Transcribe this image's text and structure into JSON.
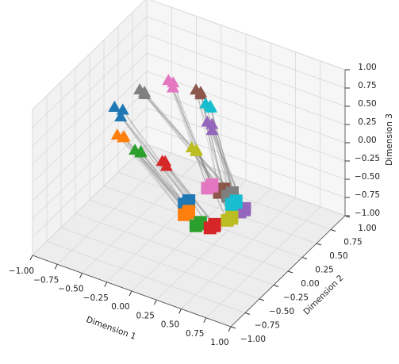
{
  "chart_data": {
    "type": "scatter3d",
    "xlabel": "Dimension 1",
    "ylabel": "Dimension 2",
    "zlabel": "Dimension 3",
    "xlim": [
      -1,
      1
    ],
    "ylim": [
      -1,
      1
    ],
    "zlim": [
      -1,
      1
    ],
    "xticks": [
      {
        "value": -1,
        "label": "−1.00"
      },
      {
        "value": -0.75,
        "label": "−0.75"
      },
      {
        "value": -0.5,
        "label": "−0.50"
      },
      {
        "value": -0.25,
        "label": "−0.25"
      },
      {
        "value": 0,
        "label": "0.00"
      },
      {
        "value": 0.25,
        "label": "0.25"
      },
      {
        "value": 0.5,
        "label": "0.50"
      },
      {
        "value": 0.75,
        "label": "0.75"
      },
      {
        "value": 1,
        "label": "1.00"
      }
    ],
    "yticks": [
      {
        "value": -1,
        "label": "−1.00"
      },
      {
        "value": -0.75,
        "label": "−0.75"
      },
      {
        "value": -0.5,
        "label": "−0.50"
      },
      {
        "value": -0.25,
        "label": "−0.25"
      },
      {
        "value": 0,
        "label": "0.00"
      },
      {
        "value": 0.25,
        "label": "0.25"
      },
      {
        "value": 0.5,
        "label": "0.50"
      },
      {
        "value": 0.75,
        "label": "0.75"
      },
      {
        "value": 1,
        "label": "1.00"
      }
    ],
    "zticks": [
      {
        "value": -1,
        "label": "−1.00"
      },
      {
        "value": -0.75,
        "label": "−0.75"
      },
      {
        "value": -0.5,
        "label": "−0.50"
      },
      {
        "value": -0.25,
        "label": "−0.25"
      },
      {
        "value": 0,
        "label": "0.00"
      },
      {
        "value": 0.25,
        "label": "0.25"
      },
      {
        "value": 0.5,
        "label": "0.50"
      },
      {
        "value": 0.75,
        "label": "0.75"
      },
      {
        "value": 1,
        "label": "1.00"
      }
    ],
    "grid": true,
    "series": [
      {
        "color": "#1f77b4",
        "marker": "s",
        "x": [
          -0.15,
          -0.12,
          -0.1
        ],
        "y": [
          0.18,
          0.21,
          0.17
        ],
        "z": [
          -0.78,
          -0.74,
          -0.72
        ]
      },
      {
        "color": "#ff7f0e",
        "marker": "s",
        "x": [
          -0.07,
          -0.04,
          -0.02
        ],
        "y": [
          0.04,
          0.07,
          0.03
        ],
        "z": [
          -0.78,
          -0.74,
          -0.72
        ]
      },
      {
        "color": "#2ca02c",
        "marker": "s",
        "x": [
          0.1,
          0.13,
          0.15
        ],
        "y": [
          -0.05,
          -0.02,
          -0.06
        ],
        "z": [
          -0.78,
          -0.74,
          -0.72
        ]
      },
      {
        "color": "#d62728",
        "marker": "s",
        "x": [
          0.22,
          0.25,
          0.27
        ],
        "y": [
          -0.01,
          0.02,
          -0.02
        ],
        "z": [
          -0.78,
          -0.74,
          -0.72
        ]
      },
      {
        "color": "#9467bd",
        "marker": "s",
        "x": [
          0.32,
          0.35,
          0.37
        ],
        "y": [
          0.34,
          0.37,
          0.33
        ],
        "z": [
          -0.78,
          -0.74,
          -0.72
        ]
      },
      {
        "color": "#8c564b",
        "marker": "s",
        "x": [
          0.02,
          0.05,
          0.07
        ],
        "y": [
          0.5,
          0.53,
          0.49
        ],
        "z": [
          -0.78,
          -0.74,
          -0.72
        ]
      },
      {
        "color": "#e377c2",
        "marker": "s",
        "x": [
          -0.1,
          -0.07,
          -0.05
        ],
        "y": [
          0.5,
          0.53,
          0.49
        ],
        "z": [
          -0.78,
          -0.74,
          -0.72
        ]
      },
      {
        "color": "#7f7f7f",
        "marker": "s",
        "x": [
          0.11,
          0.14,
          0.16
        ],
        "y": [
          0.49,
          0.52,
          0.48
        ],
        "z": [
          -0.78,
          -0.74,
          -0.72
        ]
      },
      {
        "color": "#bcbd22",
        "marker": "s",
        "x": [
          0.29,
          0.32,
          0.34
        ],
        "y": [
          0.17,
          0.2,
          0.16
        ],
        "z": [
          -0.78,
          -0.74,
          -0.72
        ]
      },
      {
        "color": "#17becf",
        "marker": "s",
        "x": [
          0.2,
          0.23,
          0.25
        ],
        "y": [
          0.4,
          0.43,
          0.39
        ],
        "z": [
          -0.78,
          -0.74,
          -0.72
        ]
      },
      {
        "color": "#1f77b4",
        "marker": "^",
        "x": [
          -0.68,
          -0.62,
          -0.6
        ],
        "y": [
          -0.12,
          -0.08,
          -0.15
        ],
        "z": [
          0.52,
          0.48,
          0.45
        ]
      },
      {
        "color": "#ff7f0e",
        "marker": "^",
        "x": [
          -0.56,
          -0.52,
          -0.48
        ],
        "y": [
          -0.28,
          -0.25,
          -0.3
        ],
        "z": [
          0.32,
          0.28,
          0.35
        ]
      },
      {
        "color": "#2ca02c",
        "marker": "^",
        "x": [
          -0.37,
          -0.33,
          -0.3
        ],
        "y": [
          -0.3,
          -0.27,
          -0.32
        ],
        "z": [
          0.22,
          0.18,
          0.25
        ]
      },
      {
        "color": "#d62728",
        "marker": "^",
        "x": [
          -0.14,
          -0.11,
          -0.1
        ],
        "y": [
          -0.22,
          -0.2,
          -0.24
        ],
        "z": [
          0.12,
          0.05,
          0.15
        ]
      },
      {
        "color": "#9467bd",
        "marker": "^",
        "x": [
          0.06,
          0.09,
          0.12
        ],
        "y": [
          0.22,
          0.25,
          0.2
        ],
        "z": [
          0.42,
          0.38,
          0.35
        ]
      },
      {
        "color": "#8c564b",
        "marker": "^",
        "x": [
          -0.1,
          -0.07,
          -0.04
        ],
        "y": [
          0.3,
          0.33,
          0.28
        ],
        "z": [
          0.72,
          0.68,
          0.7
        ]
      },
      {
        "color": "#e377c2",
        "marker": "^",
        "x": [
          -0.32,
          -0.29,
          -0.27
        ],
        "y": [
          0.2,
          0.23,
          0.19
        ],
        "z": [
          0.82,
          0.78,
          0.75
        ]
      },
      {
        "color": "#7f7f7f",
        "marker": "^",
        "x": [
          -0.46,
          -0.43,
          -0.4
        ],
        "y": [
          -0.06,
          -0.03,
          -0.08
        ],
        "z": [
          0.82,
          0.78,
          0.8
        ]
      },
      {
        "color": "#bcbd22",
        "marker": "^",
        "x": [
          0.03,
          0.06,
          0.08
        ],
        "y": [
          0.0,
          0.03,
          -0.01
        ],
        "z": [
          0.22,
          0.18,
          0.2
        ]
      },
      {
        "color": "#17becf",
        "marker": "^",
        "x": [
          0.02,
          0.05,
          0.08
        ],
        "y": [
          0.26,
          0.29,
          0.25
        ],
        "z": [
          0.62,
          0.58,
          0.6
        ]
      }
    ]
  }
}
